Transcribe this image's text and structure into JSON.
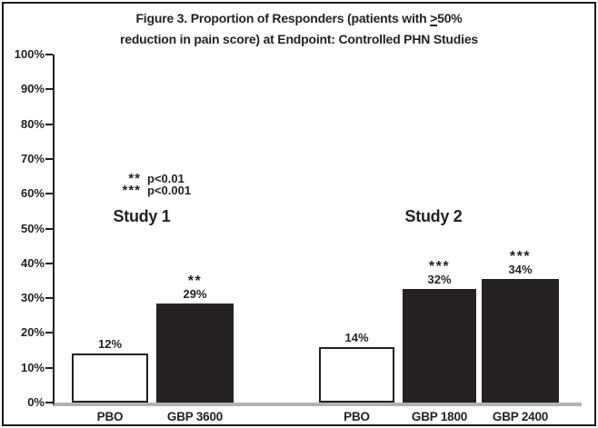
{
  "figure": {
    "title_line1_pre": "Figure 3. Proportion of Responders (patients with ",
    "title_geq": ">",
    "title_line1_post": "50%",
    "title_line2": "reduction in pain score) at Endpoint: Controlled PHN Studies"
  },
  "chart_data": {
    "type": "bar",
    "title": "Figure 3. Proportion of Responders (patients with ≥50% reduction in pain score) at Endpoint: Controlled PHN Studies",
    "xlabel": "",
    "ylabel": "",
    "ylim": [
      0,
      100
    ],
    "ytick_step": 10,
    "ytick_labels": [
      "0%",
      "10%",
      "20%",
      "30%",
      "40%",
      "50%",
      "60%",
      "70%",
      "80%",
      "90%",
      "100%"
    ],
    "grid": false,
    "legend_position": "inside-upper-left",
    "legend": [
      {
        "marker": "**",
        "label": "p<0.01"
      },
      {
        "marker": "***",
        "label": "p<0.001"
      }
    ],
    "groups": [
      {
        "name": "Study 1",
        "bars": [
          {
            "label": "PBO",
            "value": 12,
            "value_label": "12%",
            "significance": "",
            "fill": "#ffffff",
            "drawn_value": 14.1
          },
          {
            "label": "GBP 3600",
            "value": 29,
            "value_label": "29%",
            "significance": "**",
            "fill": "#262224",
            "drawn_value": 28.5
          }
        ]
      },
      {
        "name": "Study 2",
        "bars": [
          {
            "label": "PBO",
            "value": 14,
            "value_label": "14%",
            "significance": "",
            "fill": "#ffffff",
            "drawn_value": 15.9
          },
          {
            "label": "GBP 1800",
            "value": 32,
            "value_label": "32%",
            "significance": "***",
            "fill": "#262224",
            "drawn_value": 32.6
          },
          {
            "label": "GBP 2400",
            "value": 34,
            "value_label": "34%",
            "significance": "***",
            "fill": "#262224",
            "drawn_value": 35.5
          }
        ]
      }
    ],
    "colors": {
      "bar_fill_dark": "#262224",
      "bar_fill_light": "#ffffff",
      "bar_border": "#231f20",
      "axis_line": "#231f20",
      "baseline": "#b0b2b4",
      "text": "#231f26",
      "figure_border": "#1c1c1c",
      "background": "#ffffff"
    }
  }
}
